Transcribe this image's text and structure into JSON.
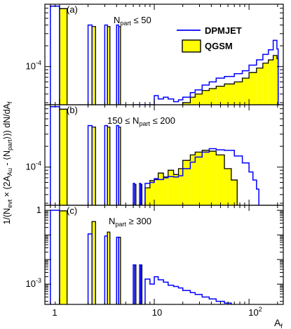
{
  "figure": {
    "ylabel_main": "1/(N",
    "ylabel_sub_evt": "evt",
    "ylabel_mid": " × (2A",
    "ylabel_sub_au": "Au",
    "ylabel_mid2": " - ⟨N",
    "ylabel_sub_part": "part",
    "ylabel_end": "⟩)) dN/dA",
    "ylabel_sub_f": "f",
    "xlabel": "A",
    "xlabel_sub": "f",
    "x_ticks": [
      "1",
      "10",
      "10"
    ],
    "x_tick_sup": "2",
    "legend": [
      {
        "name": "DPMJET",
        "style": "outline",
        "color": "#0000ff"
      },
      {
        "name": "QGSM",
        "style": "filled",
        "color": "#ffff00",
        "edge": "#000000"
      }
    ]
  },
  "chart_data": [
    {
      "type": "bar",
      "panel": "(a)",
      "annotation_prefix": "N",
      "annotation_sub": "part",
      "annotation_suffix": " ≤ 50",
      "xscale": "log",
      "yscale": "log",
      "xlim": [
        0.7,
        230
      ],
      "ylim": [
        2.8e-05,
        0.0008
      ],
      "y_ticks": [
        {
          "value": 0.0001,
          "label": "10",
          "sup": "-4"
        }
      ],
      "series": [
        {
          "name": "DPMJET",
          "bins": [
            [
              0.8,
              1.0,
              0.00075
            ],
            [
              2.0,
              2.2,
              0.0004
            ],
            [
              3.0,
              3.2,
              0.0004
            ],
            [
              4.0,
              4.2,
              0.0004
            ],
            [
              6.0,
              10.0,
              2.8e-05
            ],
            [
              10.0,
              11.0,
              3.8e-05
            ],
            [
              11.0,
              12.5,
              3.4e-05
            ],
            [
              12.5,
              14.0,
              3.6e-05
            ],
            [
              14.0,
              16.0,
              3.4e-05
            ],
            [
              16.0,
              18.0,
              3.1e-05
            ],
            [
              18.0,
              20.0,
              3.3e-05
            ],
            [
              20.0,
              24.0,
              3.6e-05
            ],
            [
              24.0,
              27.0,
              4.2e-05
            ],
            [
              27.0,
              32.0,
              4.6e-05
            ],
            [
              32.0,
              38.0,
              5.4e-05
            ],
            [
              38.0,
              45.0,
              6e-05
            ],
            [
              45.0,
              55.0,
              6.8e-05
            ],
            [
              55.0,
              70.0,
              7.2e-05
            ],
            [
              70.0,
              85.0,
              7.9e-05
            ],
            [
              85.0,
              100.0,
              8.7e-05
            ],
            [
              100.0,
              120.0,
              0.000105
            ],
            [
              120.0,
              140.0,
              0.000125
            ],
            [
              140.0,
              160.0,
              0.00015
            ],
            [
              160.0,
              180.0,
              0.000175
            ],
            [
              180.0,
              197.0,
              0.00024
            ],
            [
              197.0,
              203.0,
              0.00018
            ],
            [
              203.0,
              210.0,
              2.8e-05
            ]
          ]
        },
        {
          "name": "QGSM",
          "bins": [
            [
              1.0,
              1.2,
              0.00069
            ],
            [
              2.2,
              2.4,
              0.00038
            ],
            [
              3.2,
              3.4,
              0.00038
            ],
            [
              4.2,
              4.4,
              0.00038
            ],
            [
              20.0,
              24.0,
              3e-05
            ],
            [
              24.0,
              27.0,
              3.6e-05
            ],
            [
              27.0,
              32.0,
              4e-05
            ],
            [
              32.0,
              38.0,
              4.5e-05
            ],
            [
              38.0,
              45.0,
              4.8e-05
            ],
            [
              45.0,
              55.0,
              5.2e-05
            ],
            [
              55.0,
              70.0,
              5.6e-05
            ],
            [
              70.0,
              85.0,
              6e-05
            ],
            [
              85.0,
              100.0,
              6.8e-05
            ],
            [
              100.0,
              120.0,
              8.2e-05
            ],
            [
              120.0,
              140.0,
              9.5e-05
            ],
            [
              140.0,
              160.0,
              0.000112
            ],
            [
              160.0,
              180.0,
              0.000125
            ],
            [
              180.0,
              197.0,
              0.000145
            ],
            [
              197.0,
              203.0,
              0.00013
            ]
          ]
        }
      ]
    },
    {
      "type": "bar",
      "panel": "(b)",
      "annotation_prefix": "150 ≤ N",
      "annotation_sub": "part",
      "annotation_suffix": " ≤ 200",
      "xscale": "log",
      "yscale": "log",
      "xlim": [
        0.7,
        230
      ],
      "ylim": [
        2.8e-05,
        0.0008
      ],
      "y_ticks": [
        {
          "value": 0.0001,
          "label": "10",
          "sup": "-4"
        }
      ],
      "series": [
        {
          "name": "DPMJET",
          "bins": [
            [
              0.8,
              1.0,
              0.00075
            ],
            [
              2.0,
              2.2,
              0.0004
            ],
            [
              3.0,
              3.2,
              0.0004
            ],
            [
              4.0,
              4.2,
              0.0004
            ],
            [
              6.0,
              6.2,
              5.8e-05
            ],
            [
              7.0,
              7.2,
              5.8e-05
            ],
            [
              8.0,
              9.0,
              5.8e-05
            ],
            [
              9.0,
              10.0,
              6e-05
            ],
            [
              10.0,
              11.0,
              6.8e-05
            ],
            [
              11.0,
              12.5,
              6.6e-05
            ],
            [
              12.5,
              14.0,
              7e-05
            ],
            [
              14.0,
              16.0,
              7.3e-05
            ],
            [
              16.0,
              18.0,
              7.2e-05
            ],
            [
              18.0,
              20.0,
              7.5e-05
            ],
            [
              20.0,
              24.0,
              9.5e-05
            ],
            [
              24.0,
              27.0,
              0.000118
            ],
            [
              27.0,
              32.0,
              0.00014
            ],
            [
              32.0,
              38.0,
              0.000165
            ],
            [
              38.0,
              45.0,
              0.000185
            ],
            [
              45.0,
              55.0,
              0.000178
            ],
            [
              55.0,
              70.0,
              0.000175
            ],
            [
              70.0,
              85.0,
              0.000145
            ],
            [
              85.0,
              100.0,
              0.000115
            ],
            [
              100.0,
              110.0,
              8.5e-05
            ],
            [
              110.0,
              120.0,
              6.5e-05
            ],
            [
              120.0,
              127.0,
              4.8e-05
            ]
          ]
        },
        {
          "name": "QGSM",
          "bins": [
            [
              1.0,
              1.2,
              0.00069
            ],
            [
              2.2,
              2.4,
              0.00038
            ],
            [
              3.2,
              3.4,
              0.00038
            ],
            [
              4.2,
              4.4,
              0.00038
            ],
            [
              6.2,
              6.4,
              5.6e-05
            ],
            [
              7.2,
              7.4,
              5.6e-05
            ],
            [
              8.0,
              9.0,
              5e-05
            ],
            [
              9.0,
              10.0,
              6.4e-05
            ],
            [
              10.0,
              11.0,
              6.6e-05
            ],
            [
              11.0,
              12.5,
              8.2e-05
            ],
            [
              12.5,
              14.0,
              7.2e-05
            ],
            [
              14.0,
              16.0,
              9e-05
            ],
            [
              16.0,
              18.0,
              7.8e-05
            ],
            [
              18.0,
              20.0,
              9.5e-05
            ],
            [
              20.0,
              24.0,
              0.000125
            ],
            [
              24.0,
              27.0,
              0.00015
            ],
            [
              27.0,
              32.0,
              0.000165
            ],
            [
              32.0,
              38.0,
              0.000175
            ],
            [
              38.0,
              45.0,
              0.00017
            ],
            [
              45.0,
              55.0,
              0.00015
            ],
            [
              55.0,
              65.0,
              9.5e-05
            ],
            [
              65.0,
              75.0,
              6.5e-05
            ]
          ]
        }
      ]
    },
    {
      "type": "bar",
      "panel": "(c)",
      "annotation_prefix": "N",
      "annotation_sub": "part",
      "annotation_suffix": " ≥ 300",
      "xscale": "log",
      "yscale": "log",
      "xlim": [
        0.7,
        230
      ],
      "ylim": [
        0.00015,
        1.6
      ],
      "y_ticks": [
        {
          "value": 1,
          "label": "1",
          "sup": ""
        },
        {
          "value": 0.001,
          "label": "10",
          "sup": "-3"
        }
      ],
      "series": [
        {
          "name": "DPMJET",
          "bins": [
            [
              0.8,
              1.0,
              1.0
            ],
            [
              2.0,
              2.2,
              0.11
            ],
            [
              3.0,
              3.2,
              0.09
            ],
            [
              4.0,
              4.2,
              0.08
            ],
            [
              6.0,
              6.2,
              0.006
            ],
            [
              7.0,
              7.2,
              0.006
            ],
            [
              8.0,
              9.0,
              0.0016
            ],
            [
              9.0,
              10.0,
              0.001
            ],
            [
              10.0,
              11.0,
              0.002
            ],
            [
              11.0,
              12.5,
              0.0015
            ],
            [
              12.5,
              14.0,
              0.0012
            ],
            [
              14.0,
              16.0,
              0.0009
            ],
            [
              16.0,
              18.0,
              0.0008
            ],
            [
              18.0,
              20.0,
              0.0007
            ],
            [
              20.0,
              24.0,
              0.00055
            ],
            [
              24.0,
              27.0,
              0.00045
            ],
            [
              27.0,
              32.0,
              0.00038
            ],
            [
              32.0,
              38.0,
              0.0003
            ],
            [
              38.0,
              45.0,
              0.00025
            ],
            [
              45.0,
              55.0,
              0.0002
            ],
            [
              55.0,
              65.0,
              0.00017
            ]
          ]
        },
        {
          "name": "QGSM",
          "bins": [
            [
              1.0,
              1.2,
              0.95
            ],
            [
              2.2,
              2.4,
              0.35
            ],
            [
              3.2,
              3.4,
              0.13
            ],
            [
              4.2,
              4.4,
              0.08
            ],
            [
              6.2,
              6.4,
              0.006
            ],
            [
              7.2,
              7.4,
              0.006
            ]
          ]
        }
      ]
    }
  ]
}
